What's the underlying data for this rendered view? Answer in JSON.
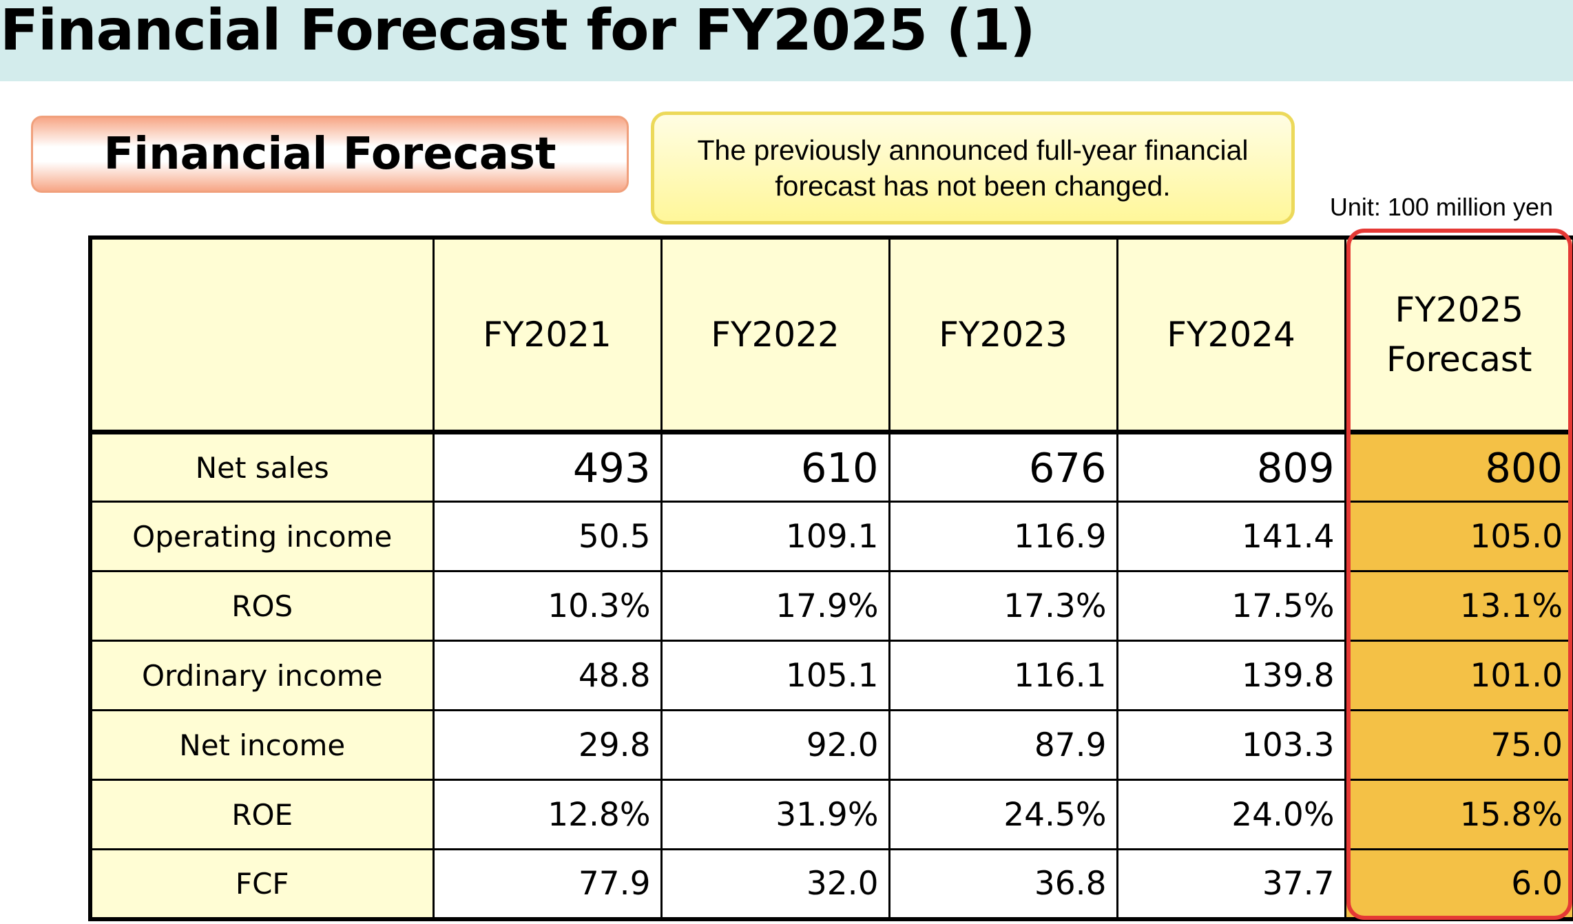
{
  "title": "Financial Forecast for FY2025 (1)",
  "section_label": "Financial Forecast",
  "notice": "The previously announced full-year financial forecast has not been changed.",
  "unit": "Unit: 100 million yen",
  "colors": {
    "title_band": "#d3ecec",
    "header_fill": "#fffdd4",
    "forecast_fill": "#f4c146",
    "highlight_border": "#e53935",
    "notice_border": "#ecd95a",
    "label_border": "#f0a07c"
  },
  "table": {
    "columns": [
      "FY2021",
      "FY2022",
      "FY2023",
      "FY2024"
    ],
    "forecast_column": [
      "FY2025",
      "Forecast"
    ],
    "rows": [
      {
        "label": "Net sales",
        "values": [
          "493",
          "610",
          "676",
          "809"
        ],
        "forecast": "800"
      },
      {
        "label": "Operating income",
        "values": [
          "50.5",
          "109.1",
          "116.9",
          "141.4"
        ],
        "forecast": "105.0"
      },
      {
        "label": "ROS",
        "values": [
          "10.3%",
          "17.9%",
          "17.3%",
          "17.5%"
        ],
        "forecast": "13.1%"
      },
      {
        "label": "Ordinary income",
        "values": [
          "48.8",
          "105.1",
          "116.1",
          "139.8"
        ],
        "forecast": "101.0"
      },
      {
        "label": "Net income",
        "values": [
          "29.8",
          "92.0",
          "87.9",
          "103.3"
        ],
        "forecast": "75.0"
      },
      {
        "label": "ROE",
        "values": [
          "12.8%",
          "31.9%",
          "24.5%",
          "24.0%"
        ],
        "forecast": "15.8%"
      },
      {
        "label": "FCF",
        "values": [
          "77.9",
          "32.0",
          "36.8",
          "37.7"
        ],
        "forecast": "6.0"
      }
    ]
  }
}
